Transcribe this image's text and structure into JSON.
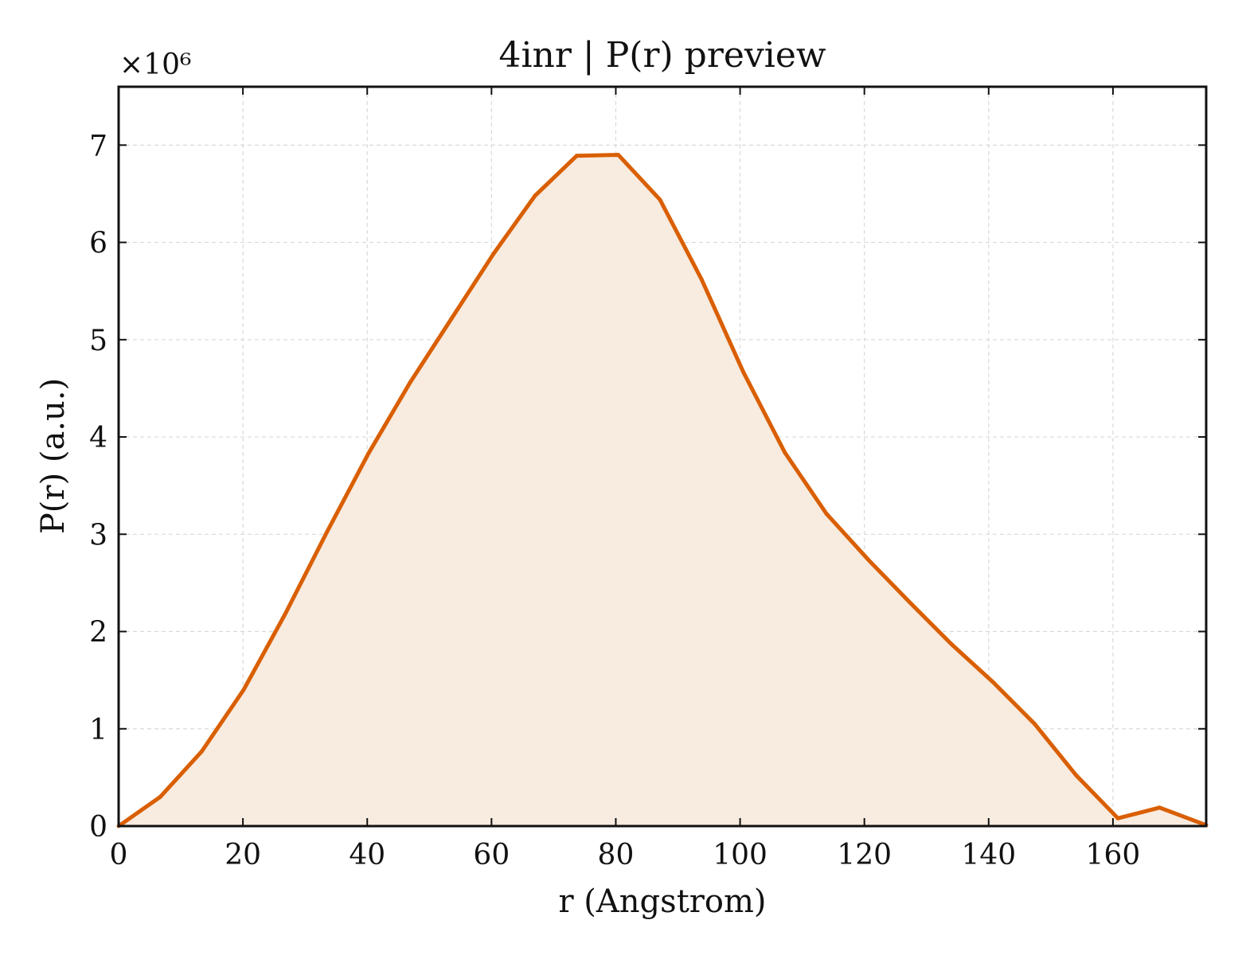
{
  "chart_data": {
    "type": "area",
    "title": "4inr | P(r) preview",
    "xlabel": "r (Angstrom)",
    "ylabel": "P(r) (a.u.)",
    "y_multiplier": "×10⁶",
    "xlim": [
      0,
      175
    ],
    "ylim": [
      0,
      7.6
    ],
    "xticks": [
      0,
      20,
      40,
      60,
      80,
      100,
      120,
      140,
      160
    ],
    "yticks": [
      0,
      1,
      2,
      3,
      4,
      5,
      6,
      7
    ],
    "grid": true,
    "line_color": "#d95f02",
    "fill_color": "#f8ebe0",
    "series": [
      {
        "x": [
          0,
          6.7,
          13.4,
          20.1,
          26.8,
          33.5,
          40.2,
          46.9,
          53.6,
          60.3,
          67.0,
          73.7,
          80.4,
          87.1,
          93.8,
          100.5,
          107.2,
          113.9,
          120.6,
          127.3,
          134.0,
          140.7,
          147.4,
          154.1,
          160.8,
          167.5,
          175.0
        ],
        "values": [
          0,
          0.3,
          0.77,
          1.4,
          2.18,
          3.02,
          3.83,
          4.56,
          5.22,
          5.88,
          6.48,
          6.89,
          6.9,
          6.44,
          5.62,
          4.67,
          3.84,
          3.21,
          2.74,
          2.3,
          1.87,
          1.48,
          1.05,
          0.52,
          0.08,
          0.19,
          0.01
        ]
      }
    ]
  }
}
